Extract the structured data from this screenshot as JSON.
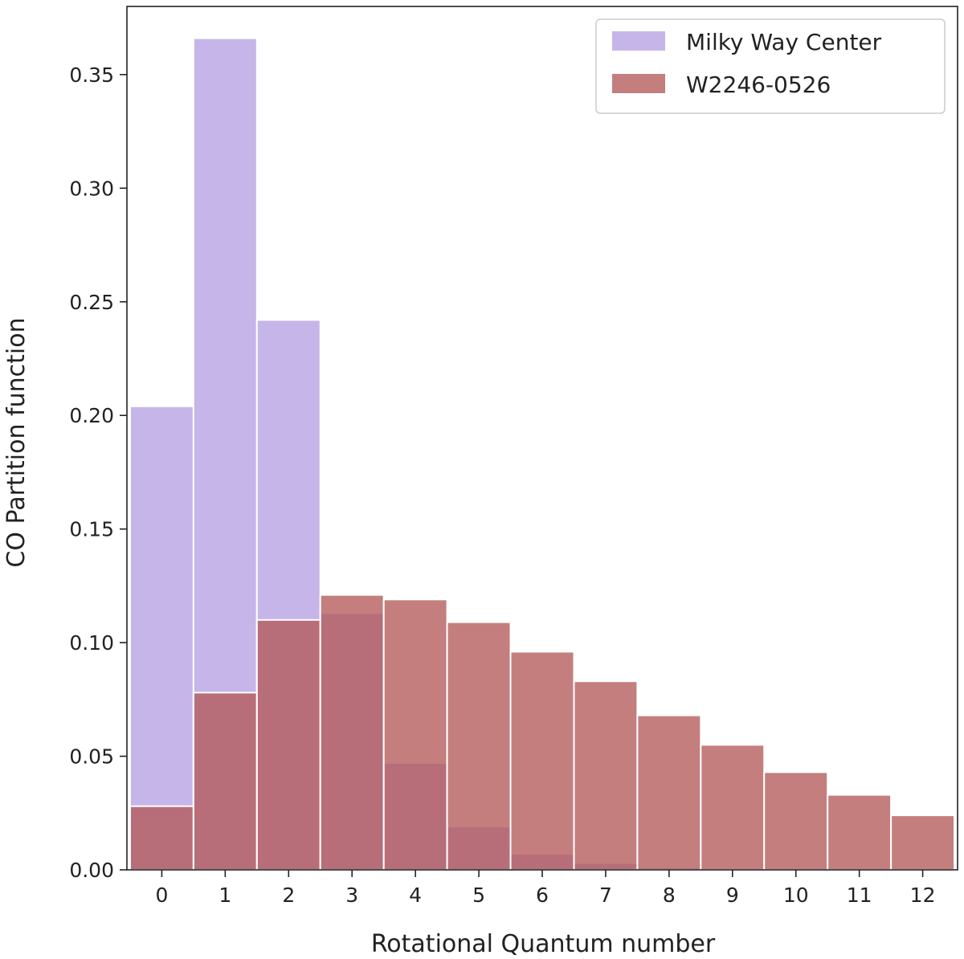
{
  "chart_data": {
    "type": "bar",
    "title": "",
    "xlabel": "Rotational Quantum number",
    "ylabel": "CO Partition function",
    "categories": [
      "0",
      "1",
      "2",
      "3",
      "4",
      "5",
      "6",
      "7",
      "8",
      "9",
      "10",
      "11",
      "12"
    ],
    "xlim": [
      -0.55,
      12.55
    ],
    "ylim": [
      0,
      0.38
    ],
    "yticks": [
      0.0,
      0.05,
      0.1,
      0.15,
      0.2,
      0.25,
      0.3,
      0.35
    ],
    "ytick_labels": [
      "0.00",
      "0.05",
      "0.10",
      "0.15",
      "0.20",
      "0.25",
      "0.30",
      "0.35"
    ],
    "legend_position": "top-right",
    "grid": false,
    "series": [
      {
        "name": "Milky Way Center",
        "color": "#b8a2e3",
        "opacity": 0.8,
        "values": [
          0.204,
          0.366,
          0.242,
          0.113,
          0.047,
          0.019,
          0.007,
          0.003,
          0.001,
          0.0,
          0.0,
          0.0,
          0.0
        ]
      },
      {
        "name": "W2246-0526",
        "color": "#b45a5a",
        "opacity": 0.78,
        "values": [
          0.028,
          0.078,
          0.11,
          0.121,
          0.119,
          0.109,
          0.096,
          0.083,
          0.068,
          0.055,
          0.043,
          0.033,
          0.024
        ]
      }
    ]
  }
}
